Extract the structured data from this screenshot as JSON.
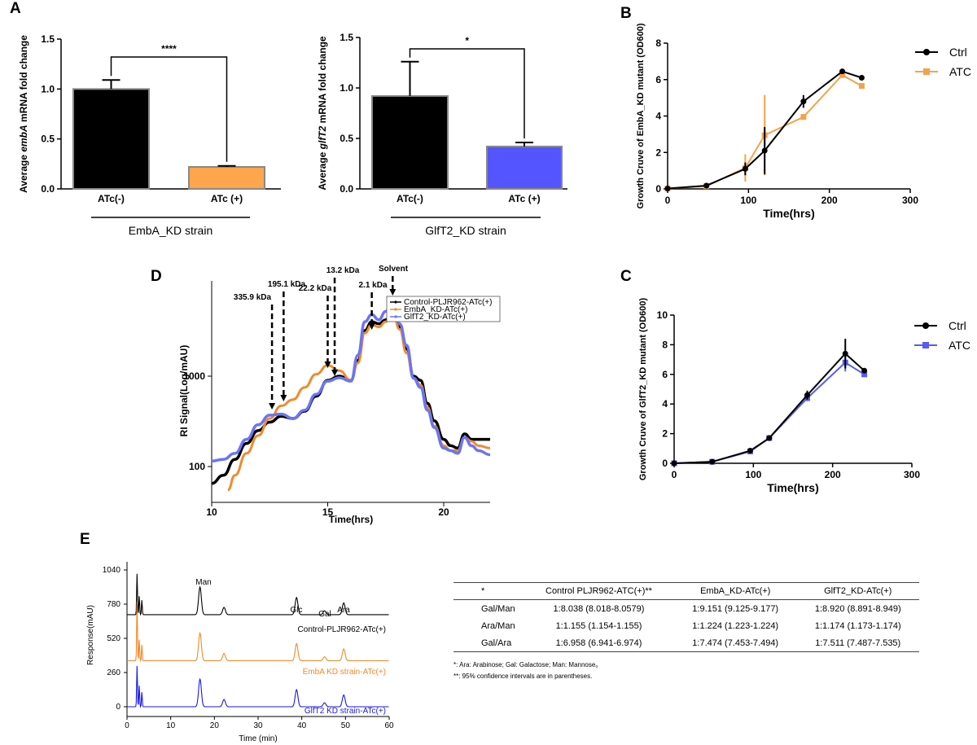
{
  "panels": {
    "A": "A",
    "B": "B",
    "C": "C",
    "D": "D",
    "E": "E"
  },
  "chart_data": [
    {
      "id": "A1",
      "type": "bar",
      "title": "",
      "categories": [
        "ATc(-)",
        "ATc (+)"
      ],
      "values": [
        1.0,
        0.22
      ],
      "errors": [
        0.09,
        0.01
      ],
      "colors": [
        "#000000",
        "#ffa64d"
      ],
      "ylabel_pre": "Average ",
      "ylabel_gene": "embA",
      "ylabel_post": " mRNA fold change",
      "ylim": [
        0,
        1.5
      ],
      "yticks": [
        "0.0",
        "0.5",
        "1.0",
        "1.5"
      ],
      "significance": "****",
      "group_label": "EmbA_KD strain"
    },
    {
      "id": "A2",
      "type": "bar",
      "title": "",
      "categories": [
        "ATc(-)",
        "ATc (+)"
      ],
      "values": [
        0.92,
        0.42
      ],
      "errors": [
        0.34,
        0.04
      ],
      "colors": [
        "#000000",
        "#5555ff"
      ],
      "ylabel_pre": "Average ",
      "ylabel_gene": "glfT2",
      "ylabel_post": " mRNA fold change",
      "ylim": [
        0,
        1.5
      ],
      "yticks": [
        "0.0",
        "0.5",
        "1.0",
        "1.5"
      ],
      "significance": "*",
      "group_label": "GlfT2_KD strain"
    },
    {
      "id": "B",
      "type": "line",
      "xlabel": "Time(hrs)",
      "ylabel": "Growth Cruve of EmbA_KD mutant (OD600)",
      "xlim": [
        0,
        300
      ],
      "ylim": [
        0,
        8
      ],
      "xticks": [
        "0",
        "100",
        "200",
        "300"
      ],
      "yticks": [
        "0",
        "2",
        "4",
        "6",
        "8"
      ],
      "series": [
        {
          "name": "Ctrl",
          "color": "#000000",
          "marker": "circle",
          "x": [
            0,
            48,
            96,
            120,
            168,
            216,
            240
          ],
          "y": [
            0.02,
            0.18,
            1.1,
            2.1,
            4.8,
            6.45,
            6.1
          ],
          "err": [
            0,
            0.05,
            0.35,
            1.3,
            0.35,
            0.1,
            0.1
          ]
        },
        {
          "name": "ATC",
          "color": "#f4a24a",
          "marker": "square",
          "x": [
            0,
            48,
            96,
            120,
            168,
            216,
            240
          ],
          "y": [
            0.02,
            0.15,
            1.15,
            2.95,
            3.95,
            6.25,
            5.65
          ],
          "err": [
            0,
            0.05,
            0.75,
            2.2,
            0.15,
            0.1,
            0.1
          ]
        }
      ]
    },
    {
      "id": "C",
      "type": "line",
      "xlabel": "Time(hrs)",
      "ylabel": "Growth Cruve of GlfT2_KD mutant (OD600)",
      "xlim": [
        0,
        300
      ],
      "ylim": [
        0,
        10
      ],
      "xticks": [
        "0",
        "100",
        "200",
        "300"
      ],
      "yticks": [
        "0",
        "2",
        "4",
        "6",
        "8",
        "10"
      ],
      "series": [
        {
          "name": "Ctrl",
          "color": "#000000",
          "marker": "circle",
          "x": [
            0,
            48,
            96,
            120,
            168,
            216,
            240
          ],
          "y": [
            0,
            0.1,
            0.85,
            1.7,
            4.6,
            7.4,
            6.25
          ],
          "err": [
            0,
            0.05,
            0.1,
            0.1,
            0.3,
            1.0,
            0.1
          ]
        },
        {
          "name": "ATC",
          "color": "#5a5af5",
          "marker": "square",
          "x": [
            0,
            48,
            96,
            120,
            168,
            216,
            240
          ],
          "y": [
            0,
            0.1,
            0.8,
            1.7,
            4.4,
            6.8,
            6.0
          ],
          "err": [
            0,
            0.05,
            0.1,
            0.1,
            0.2,
            0.6,
            0.1
          ]
        }
      ]
    },
    {
      "id": "D",
      "type": "line",
      "scale": "log",
      "xlabel": "Time(hrs)",
      "ylabel": "RI Signal(Log/mAU)",
      "xlim": [
        10,
        22
      ],
      "xticks": [
        "10",
        "15",
        "20"
      ],
      "yticks": [
        "100",
        "1000"
      ],
      "series": [
        {
          "name": "Control-PLJR962-ATc(+)",
          "color": "#000000",
          "x": [
            10,
            10.5,
            11,
            11.5,
            12,
            12.5,
            13,
            13.5,
            14,
            14.5,
            15,
            15.5,
            16,
            16.3,
            16.6,
            16.9,
            17.2,
            17.5,
            17.8,
            18.1,
            18.4,
            18.7,
            19,
            19.3,
            19.6,
            20,
            20.3,
            20.6,
            20.9,
            21.2,
            21.5,
            22
          ],
          "y": [
            65,
            80,
            120,
            180,
            250,
            310,
            360,
            340,
            410,
            600,
            900,
            1000,
            900,
            1500,
            3200,
            4000,
            3800,
            4200,
            5500,
            3500,
            2000,
            1000,
            900,
            500,
            320,
            200,
            170,
            160,
            230,
            200,
            200,
            200
          ]
        },
        {
          "name": "EmbA_KD-ATc(+)",
          "color": "#f08a2c",
          "x": [
            10.7,
            11,
            11.5,
            12,
            12.5,
            13,
            13.5,
            14,
            14.5,
            15,
            15.5,
            16,
            16.3,
            16.6,
            16.9,
            17.2,
            17.5,
            17.8,
            18.1,
            18.4,
            18.7,
            19,
            19.3,
            19.6,
            20,
            20.3,
            20.6,
            20.9,
            21.2,
            21.5,
            22
          ],
          "y": [
            55,
            80,
            140,
            220,
            340,
            470,
            550,
            750,
            1050,
            1320,
            1150,
            900,
            1400,
            3000,
            3700,
            3500,
            4000,
            5200,
            3300,
            1800,
            950,
            800,
            450,
            280,
            170,
            150,
            150,
            210,
            190,
            170,
            160
          ]
        },
        {
          "name": "GlfT2_KD-ATc(+)",
          "color": "#6b75f2",
          "x": [
            10,
            10.5,
            11,
            11.5,
            12,
            12.5,
            13,
            13.5,
            14,
            14.5,
            15,
            15.5,
            16,
            16.3,
            16.6,
            16.9,
            17.2,
            17.5,
            17.8,
            18.1,
            18.4,
            18.7,
            19,
            19.3,
            19.6,
            20,
            20.3,
            20.6,
            20.9,
            21.2,
            21.5,
            22
          ],
          "y": [
            115,
            120,
            140,
            200,
            290,
            370,
            380,
            340,
            420,
            630,
            880,
            960,
            880,
            1700,
            4000,
            4800,
            4200,
            5200,
            7000,
            3800,
            2200,
            950,
            750,
            420,
            270,
            160,
            150,
            140,
            210,
            170,
            150,
            135
          ]
        }
      ],
      "annotations": [
        {
          "label": "335.9 kDa",
          "x": 12.6
        },
        {
          "label": "195.1 kDa",
          "x": 13.1
        },
        {
          "label": "22.2 kDa",
          "x": 15.0
        },
        {
          "label": "13.2 kDa",
          "x": 15.3
        },
        {
          "label": "2.1 kDa",
          "x": 16.9
        },
        {
          "label": "Solvent",
          "x": 17.8
        }
      ]
    },
    {
      "id": "E",
      "type": "line",
      "xlabel": "Time (min)",
      "ylabel": "Response(mAU)",
      "xlim": [
        0,
        60
      ],
      "xticks": [
        "0",
        "10",
        "20",
        "30",
        "40",
        "50",
        "60"
      ],
      "yticks": [
        "0",
        "260",
        "520",
        "780",
        "1040"
      ],
      "series": [
        {
          "name": "Control-PLJR962-ATc(+)",
          "color": "#000000",
          "offset": 700
        },
        {
          "name": "EmbA KD strain-ATc(+)",
          "color": "#f08a2c",
          "offset": 350
        },
        {
          "name": "GlfT2 KD strain-ATc(+)",
          "color": "#1a1ae6",
          "offset": 0
        }
      ],
      "peaks": [
        {
          "x": 2.3,
          "h": [
            310,
            450,
            310
          ]
        },
        {
          "x": 2.8,
          "h": [
            140,
            160,
            160
          ]
        },
        {
          "x": 3.4,
          "h": [
            110,
            120,
            110
          ]
        },
        {
          "x": 16.7,
          "h": 210,
          "label": "Man"
        },
        {
          "x": 22.2,
          "h": 55
        },
        {
          "x": 38.8,
          "h": 130,
          "label": "Glc"
        },
        {
          "x": 45.2,
          "h": 30,
          "label": "Gal"
        },
        {
          "x": 49.6,
          "h": 90,
          "label": "Ara"
        }
      ]
    }
  ],
  "table": {
    "headers": [
      "*",
      "Control PLJR962-ATC(+)**",
      "EmbA_KD-ATc(+)",
      "GlfT2_KD-ATc(+)"
    ],
    "rows": [
      [
        "Gal/Man",
        "1:8.038 (8.018-8.0579)",
        "1:9.151 (9.125-9.177)",
        "1:8.920 (8.891-8.949)"
      ],
      [
        "Ara/Man",
        "1:1.155 (1.154-1.155)",
        "1:1.224 (1.223-1.224)",
        "1:1.174 (1.173-1.174)"
      ],
      [
        "Gal/Ara",
        "1:6.958 (6.941-6.974)",
        "1:7.474 (7.453-7.494)",
        "1:7.511 (7.487-7.535)"
      ]
    ],
    "note1": "*: Ara: Arabinose; Gal: Galactose; Man: Mannose。",
    "note2": "**: 95% confidence intervals  are in parentheses."
  }
}
